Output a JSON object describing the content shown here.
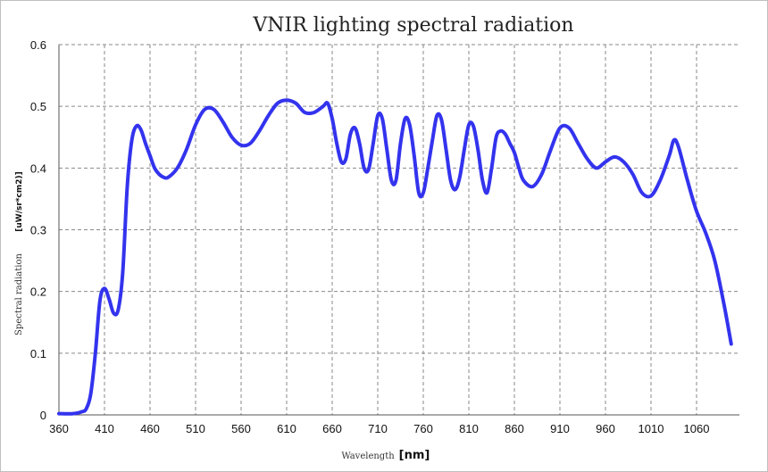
{
  "chart_data": {
    "type": "line",
    "title": "VNIR lighting spectral radiation",
    "xlabel": "Wavelength",
    "xlabel_unit": "[nm]",
    "ylabel": "Spectral radiation",
    "ylabel_unit": "[uW/sr*cm2)]",
    "xlim": [
      360,
      1100
    ],
    "ylim": [
      0,
      0.6
    ],
    "x_ticks": [
      "360",
      "410",
      "460",
      "510",
      "560",
      "610",
      "660",
      "710",
      "760",
      "810",
      "860",
      "910",
      "960",
      "1010",
      "1060"
    ],
    "y_ticks": [
      "0",
      "0.1",
      "0.2",
      "0.3",
      "0.4",
      "0.5",
      "0.6"
    ],
    "grid": true,
    "line_color": "#3333ee",
    "series": [
      {
        "x": [
          360,
          375,
          385,
          390,
          395,
          400,
          405,
          410,
          415,
          420,
          425,
          430,
          435,
          440,
          445,
          450,
          455,
          460,
          465,
          470,
          475,
          480,
          490,
          500,
          510,
          520,
          530,
          540,
          550,
          560,
          570,
          580,
          590,
          600,
          610,
          620,
          630,
          640,
          650,
          655,
          660,
          665,
          670,
          675,
          680,
          685,
          690,
          695,
          700,
          705,
          710,
          715,
          720,
          725,
          730,
          735,
          740,
          745,
          750,
          755,
          760,
          765,
          770,
          775,
          780,
          785,
          790,
          795,
          800,
          805,
          810,
          815,
          820,
          825,
          830,
          835,
          840,
          845,
          850,
          855,
          860,
          865,
          870,
          880,
          890,
          900,
          910,
          920,
          930,
          940,
          950,
          960,
          970,
          980,
          990,
          1000,
          1010,
          1020,
          1030,
          1035,
          1040,
          1050,
          1060,
          1070,
          1080,
          1090,
          1098
        ],
        "y": [
          0.002,
          0.002,
          0.005,
          0.01,
          0.035,
          0.1,
          0.185,
          0.205,
          0.188,
          0.165,
          0.17,
          0.23,
          0.37,
          0.445,
          0.468,
          0.462,
          0.44,
          0.42,
          0.4,
          0.39,
          0.385,
          0.385,
          0.4,
          0.43,
          0.47,
          0.495,
          0.495,
          0.475,
          0.45,
          0.437,
          0.44,
          0.46,
          0.485,
          0.505,
          0.51,
          0.505,
          0.49,
          0.49,
          0.5,
          0.505,
          0.48,
          0.44,
          0.41,
          0.415,
          0.455,
          0.465,
          0.44,
          0.4,
          0.398,
          0.44,
          0.485,
          0.48,
          0.43,
          0.38,
          0.38,
          0.44,
          0.48,
          0.47,
          0.42,
          0.36,
          0.36,
          0.4,
          0.445,
          0.485,
          0.478,
          0.43,
          0.38,
          0.365,
          0.385,
          0.43,
          0.47,
          0.468,
          0.43,
          0.38,
          0.36,
          0.4,
          0.45,
          0.46,
          0.455,
          0.44,
          0.425,
          0.4,
          0.38,
          0.37,
          0.39,
          0.43,
          0.465,
          0.465,
          0.44,
          0.415,
          0.4,
          0.41,
          0.418,
          0.41,
          0.39,
          0.36,
          0.355,
          0.38,
          0.42,
          0.445,
          0.435,
          0.38,
          0.33,
          0.295,
          0.25,
          0.18,
          0.115
        ]
      }
    ]
  }
}
